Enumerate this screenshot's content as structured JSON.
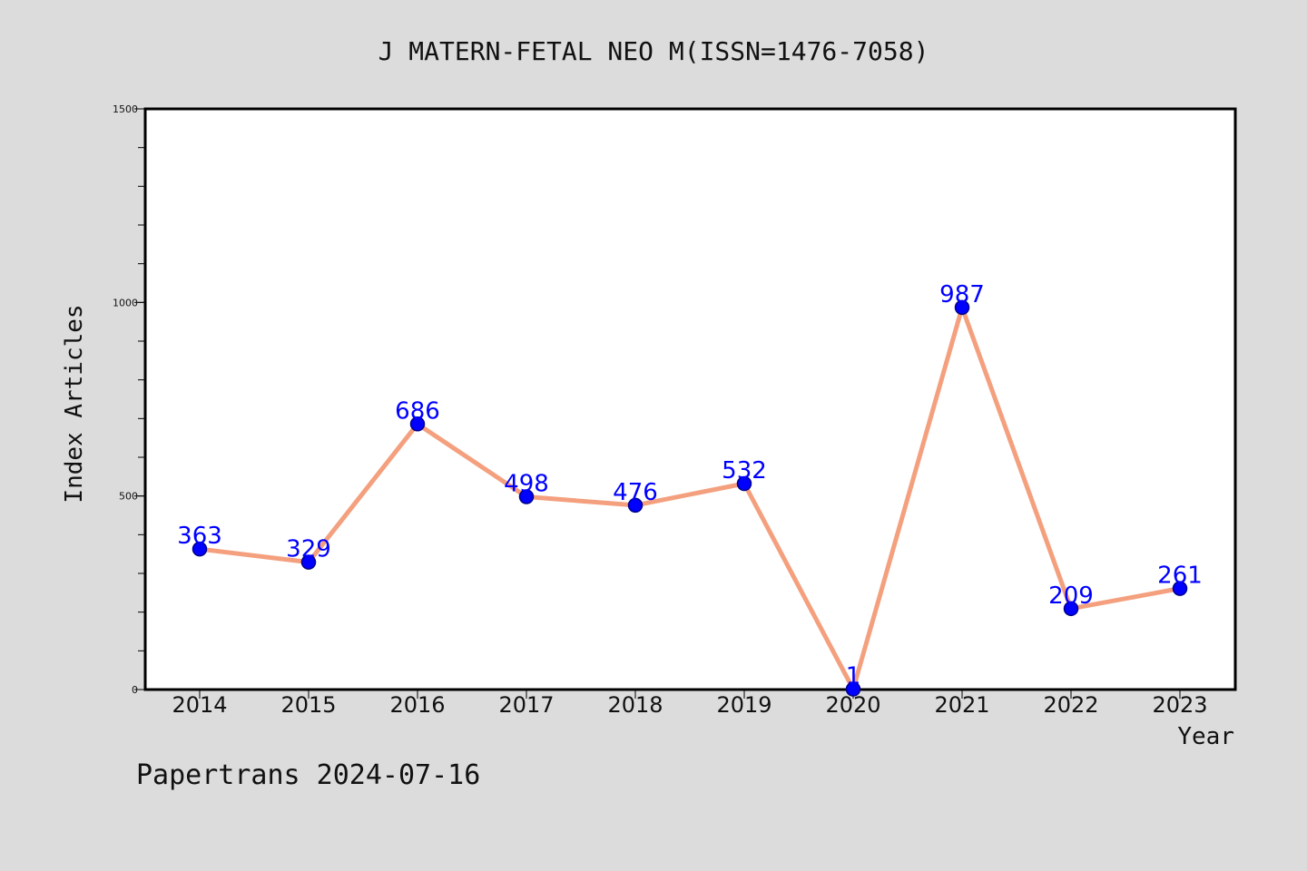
{
  "chart_data": {
    "type": "line",
    "title": "J MATERN-FETAL NEO M(ISSN=1476-7058)",
    "xlabel": "Year",
    "ylabel": "Index Articles",
    "categories": [
      "2014",
      "2015",
      "2016",
      "2017",
      "2018",
      "2019",
      "2020",
      "2021",
      "2022",
      "2023"
    ],
    "series": [
      {
        "values": [
          363,
          329,
          686,
          498,
          476,
          532,
          1,
          987,
          209,
          261
        ]
      }
    ],
    "data_labels": [
      "363",
      "329",
      "686",
      "498",
      "476",
      "532",
      "1",
      "987",
      "209",
      "261"
    ],
    "y_ticks": [
      "0",
      "500",
      "1000",
      "1500"
    ],
    "ylim": [
      0,
      1500
    ],
    "y_minor_step": 100,
    "grid": false,
    "legend": "none",
    "colors": {
      "line": "#f4a07e",
      "marker": "#0000ff",
      "marker_edge": "#00008b",
      "data_label": "#0000ff",
      "background": "#dcdcdc",
      "plot_background": "#ffffff"
    }
  },
  "footer": {
    "text": "Papertrans 2024-07-16"
  }
}
